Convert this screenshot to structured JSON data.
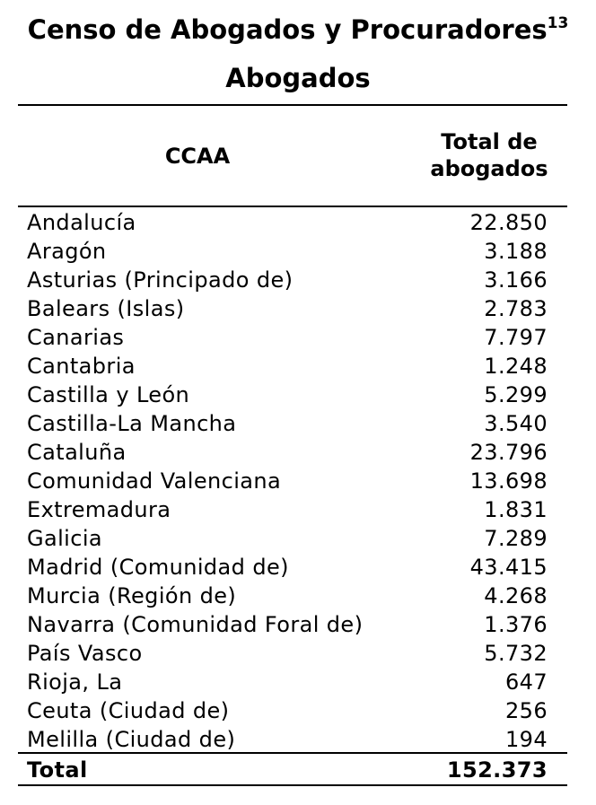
{
  "document": {
    "title": "Censo de Abogados y Procuradores",
    "title_footnote": "13",
    "subtitle": "Abogados"
  },
  "table": {
    "headers": {
      "region": "CCAA",
      "total_line1": "Total de",
      "total_line2": "abogados"
    },
    "rows": [
      {
        "region": "Andalucía",
        "value": "22.850"
      },
      {
        "region": "Aragón",
        "value": "3.188"
      },
      {
        "region": "Asturias (Principado de)",
        "value": "3.166"
      },
      {
        "region": "Balears (Islas)",
        "value": "2.783"
      },
      {
        "region": "Canarias",
        "value": "7.797"
      },
      {
        "region": "Cantabria",
        "value": "1.248"
      },
      {
        "region": "Castilla y León",
        "value": "5.299"
      },
      {
        "region": "Castilla-La Mancha",
        "value": "3.540"
      },
      {
        "region": "Cataluña",
        "value": "23.796"
      },
      {
        "region": "Comunidad Valenciana",
        "value": "13.698"
      },
      {
        "region": "Extremadura",
        "value": "1.831"
      },
      {
        "region": "Galicia",
        "value": "7.289"
      },
      {
        "region": "Madrid (Comunidad de)",
        "value": "43.415"
      },
      {
        "region": "Murcia (Región de)",
        "value": "4.268"
      },
      {
        "region": "Navarra (Comunidad Foral de)",
        "value": "1.376"
      },
      {
        "region": "País Vasco",
        "value": "5.732"
      },
      {
        "region": "Rioja, La",
        "value": "647"
      },
      {
        "region": "Ceuta (Ciudad de)",
        "value": "256"
      },
      {
        "region": "Melilla (Ciudad de)",
        "value": "194"
      }
    ],
    "total": {
      "label": "Total",
      "value": "152.373"
    }
  }
}
